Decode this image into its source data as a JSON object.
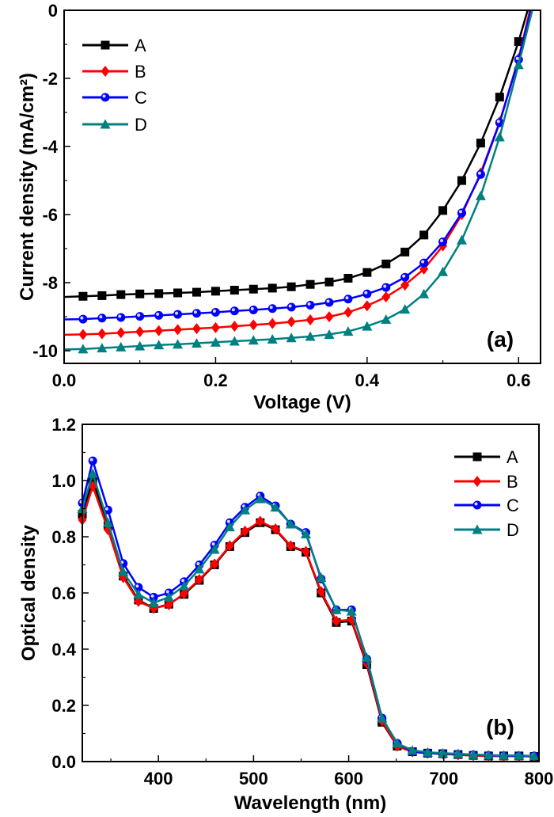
{
  "chart_data": [
    {
      "type": "line",
      "panel_label": "(a)",
      "xlabel": "Voltage (V)",
      "ylabel": "Current density (mA/cm²)",
      "xlim": [
        0,
        0.629
      ],
      "ylim": [
        -10.37,
        0
      ],
      "xticks": [
        0.0,
        0.2,
        0.4,
        0.6
      ],
      "xtick_labels": [
        "0.0",
        "0.2",
        "0.4",
        "0.6"
      ],
      "yticks": [
        0,
        -2,
        -4,
        -6,
        -8,
        -10
      ],
      "ytick_labels": [
        "0",
        "-2",
        "-4",
        "-6",
        "-8",
        "-10"
      ],
      "grid": false,
      "legend": "top-left",
      "x": [
        0.025,
        0.05,
        0.075,
        0.1,
        0.125,
        0.15,
        0.175,
        0.2,
        0.225,
        0.25,
        0.275,
        0.3,
        0.325,
        0.35,
        0.375,
        0.4,
        0.425,
        0.45,
        0.475,
        0.5,
        0.525,
        0.55,
        0.575,
        0.6
      ],
      "series": [
        {
          "name": "A",
          "color": "#000000",
          "marker": "square",
          "values": [
            -8.4,
            -8.38,
            -8.35,
            -8.33,
            -8.32,
            -8.3,
            -8.28,
            -8.25,
            -8.22,
            -8.19,
            -8.16,
            -8.12,
            -8.05,
            -7.98,
            -7.87,
            -7.7,
            -7.45,
            -7.1,
            -6.6,
            -5.88,
            -5.0,
            -3.9,
            -2.55,
            -0.92
          ]
        },
        {
          "name": "B",
          "color": "#ff0000",
          "marker": "diamond",
          "values": [
            -9.52,
            -9.5,
            -9.47,
            -9.44,
            -9.41,
            -9.38,
            -9.35,
            -9.32,
            -9.28,
            -9.24,
            -9.2,
            -9.15,
            -9.09,
            -9.0,
            -8.87,
            -8.68,
            -8.42,
            -8.07,
            -7.6,
            -6.92,
            -6.0,
            -4.78,
            -3.28,
            -1.42
          ]
        },
        {
          "name": "C",
          "color": "#0000ff",
          "marker": "circle",
          "values": [
            -9.07,
            -9.04,
            -9.02,
            -8.99,
            -8.96,
            -8.93,
            -8.9,
            -8.87,
            -8.83,
            -8.8,
            -8.76,
            -8.72,
            -8.66,
            -8.58,
            -8.48,
            -8.33,
            -8.14,
            -7.84,
            -7.42,
            -6.8,
            -5.95,
            -4.82,
            -3.3,
            -1.45
          ]
        },
        {
          "name": "D",
          "color": "#008080",
          "marker": "triangle",
          "values": [
            -9.95,
            -9.92,
            -9.89,
            -9.86,
            -9.83,
            -9.81,
            -9.78,
            -9.75,
            -9.72,
            -9.69,
            -9.66,
            -9.62,
            -9.58,
            -9.52,
            -9.43,
            -9.28,
            -9.08,
            -8.78,
            -8.33,
            -7.68,
            -6.75,
            -5.45,
            -3.72,
            -1.6
          ]
        }
      ]
    },
    {
      "type": "line",
      "panel_label": "(b)",
      "xlabel": "Wavelength (nm)",
      "ylabel": "Optical density",
      "xlim": [
        320,
        800
      ],
      "ylim": [
        0,
        1.2
      ],
      "xticks": [
        400,
        500,
        600,
        700,
        800
      ],
      "xtick_labels": [
        "400",
        "500",
        "600",
        "700",
        "800"
      ],
      "yticks": [
        0.0,
        0.2,
        0.4,
        0.6,
        0.8,
        1.0,
        1.2
      ],
      "ytick_labels": [
        "0.0",
        "0.2",
        "0.4",
        "0.6",
        "0.8",
        "1.0",
        "1.2"
      ],
      "grid": false,
      "legend": "top-right",
      "x": [
        320,
        331,
        347,
        363,
        379,
        395,
        411,
        427,
        443,
        459,
        475,
        491,
        507,
        523,
        539,
        555,
        571,
        587,
        603,
        619,
        635,
        651,
        667,
        683,
        699,
        715,
        731,
        747,
        763,
        779,
        795
      ],
      "series": [
        {
          "name": "A",
          "color": "#000000",
          "marker": "square",
          "values": [
            0.88,
            1.0,
            0.84,
            0.66,
            0.575,
            0.545,
            0.56,
            0.595,
            0.645,
            0.7,
            0.765,
            0.815,
            0.85,
            0.825,
            0.765,
            0.745,
            0.6,
            0.495,
            0.5,
            0.345,
            0.14,
            0.055,
            0.035,
            0.03,
            0.028,
            0.025,
            0.022,
            0.02,
            0.02,
            0.02,
            0.018
          ]
        },
        {
          "name": "B",
          "color": "#ff0000",
          "marker": "diamond",
          "values": [
            0.86,
            0.98,
            0.825,
            0.655,
            0.57,
            0.545,
            0.558,
            0.598,
            0.648,
            0.703,
            0.768,
            0.82,
            0.855,
            0.828,
            0.768,
            0.748,
            0.605,
            0.5,
            0.505,
            0.35,
            0.145,
            0.055,
            0.035,
            0.03,
            0.027,
            0.024,
            0.021,
            0.02,
            0.019,
            0.019,
            0.018
          ]
        },
        {
          "name": "C",
          "color": "#0000ff",
          "marker": "circle",
          "values": [
            0.92,
            1.07,
            0.895,
            0.705,
            0.62,
            0.585,
            0.6,
            0.64,
            0.7,
            0.77,
            0.85,
            0.905,
            0.945,
            0.91,
            0.845,
            0.815,
            0.65,
            0.54,
            0.54,
            0.365,
            0.155,
            0.065,
            0.035,
            0.03,
            0.028,
            0.026,
            0.024,
            0.022,
            0.021,
            0.02,
            0.02
          ]
        },
        {
          "name": "D",
          "color": "#008080",
          "marker": "triangle",
          "values": [
            0.9,
            1.025,
            0.85,
            0.675,
            0.595,
            0.565,
            0.585,
            0.625,
            0.685,
            0.755,
            0.835,
            0.895,
            0.935,
            0.905,
            0.845,
            0.81,
            0.655,
            0.54,
            0.535,
            0.37,
            0.155,
            0.065,
            0.04,
            0.033,
            0.03,
            0.028,
            0.025,
            0.023,
            0.022,
            0.022,
            0.02
          ]
        }
      ]
    }
  ]
}
